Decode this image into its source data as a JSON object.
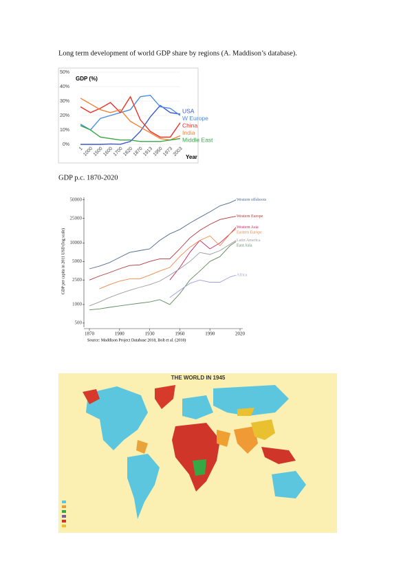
{
  "document": {
    "caption_1": "Long term development of world GDP share by regions (A. Maddison’s database).",
    "caption_2": "GDP p.c. 1870-2020"
  },
  "chart_data": [
    {
      "type": "line",
      "ylabel": "GDP (%)",
      "xlabel": "Year",
      "categories": [
        "1",
        "1000",
        "1500",
        "1600",
        "1700",
        "1820",
        "1870",
        "1913",
        "1950",
        "1973",
        "2003"
      ],
      "ylim": [
        0,
        50
      ],
      "yticks": [
        {
          "value": 0,
          "label": "0%"
        },
        {
          "value": 10,
          "label": "10%"
        },
        {
          "value": 20,
          "label": "20%"
        },
        {
          "value": 30,
          "label": "30%"
        },
        {
          "value": 40,
          "label": "40%"
        },
        {
          "value": 50,
          "label": "50%"
        }
      ],
      "series": [
        {
          "name": "USA",
          "color": "#3a55d0",
          "values": [
            0,
            0,
            0,
            0.3,
            0.1,
            2,
            9,
            19,
            27,
            22,
            21
          ]
        },
        {
          "name": "W Europe",
          "color": "#4a8ae8",
          "values": [
            14,
            10,
            18,
            20,
            22,
            24,
            33,
            34,
            26,
            25,
            20
          ]
        },
        {
          "name": "China",
          "color": "#e83028",
          "values": [
            26,
            22,
            25,
            29,
            22,
            33,
            17,
            9,
            5,
            5,
            15
          ]
        },
        {
          "name": "India",
          "color": "#f08232",
          "values": [
            32,
            28,
            24,
            22,
            24,
            16,
            12,
            8,
            4,
            3,
            6
          ]
        },
        {
          "name": "Middle East",
          "color": "#35a845",
          "values": [
            13,
            10,
            5,
            4,
            3,
            3,
            2,
            2,
            2,
            3,
            4
          ]
        }
      ]
    },
    {
      "type": "line",
      "log_scale_y": true,
      "ylabel": "GDP per capita in 2011 USD (log scale)",
      "note": "Source: Maddison Project Database 2018, Bolt et al. (2018)",
      "x": [
        1870,
        1880,
        1890,
        1900,
        1910,
        1920,
        1930,
        1940,
        1950,
        1960,
        1970,
        1980,
        1990,
        2000,
        2010,
        2016
      ],
      "xlim": [
        1870,
        2020
      ],
      "xticks": [
        1870,
        1900,
        1930,
        1960,
        1990,
        2020
      ],
      "ylim": [
        450,
        55000
      ],
      "yticks": [
        500,
        1000,
        2500,
        5000,
        10000,
        25000,
        50000
      ],
      "series": [
        {
          "name": "Western offshoots",
          "color": "#4d6a8c",
          "values": [
            3800,
            4200,
            4800,
            5800,
            7000,
            7500,
            8000,
            11000,
            14000,
            16500,
            21000,
            26000,
            32000,
            40000,
            45000,
            50000
          ]
        },
        {
          "name": "Western Europe",
          "color": "#b03434",
          "values": [
            2500,
            2900,
            3300,
            3800,
            4300,
            4400,
            5000,
            5500,
            5500,
            8000,
            12000,
            16000,
            20000,
            24000,
            26000,
            27000
          ]
        },
        {
          "name": "Western Asia",
          "color": "#cc2358",
          "values": [
            null,
            null,
            null,
            null,
            null,
            null,
            null,
            null,
            2500,
            4000,
            7000,
            11000,
            8000,
            10000,
            14000,
            18000
          ]
        },
        {
          "name": "Eastern Europe",
          "color": "#f08545",
          "values": [
            null,
            1800,
            2100,
            2400,
            2600,
            2600,
            3000,
            3500,
            4000,
            6000,
            8500,
            11000,
            13000,
            9000,
            14000,
            17000
          ]
        },
        {
          "name": "Latin America",
          "color": "#9a9a9a",
          "values": [
            950,
            1100,
            1300,
            1500,
            1700,
            1900,
            2100,
            2400,
            3000,
            3800,
            5000,
            7000,
            6500,
            7500,
            9500,
            11000
          ]
        },
        {
          "name": "East Asia",
          "color": "#5d8a5d",
          "values": [
            820,
            850,
            900,
            950,
            1000,
            1050,
            1100,
            1200,
            1000,
            1500,
            2500,
            3500,
            5000,
            6000,
            9000,
            10500
          ]
        },
        {
          "name": "Africa",
          "color": "#9d9de0",
          "values": [
            null,
            null,
            null,
            null,
            null,
            null,
            null,
            null,
            1300,
            1700,
            2200,
            2500,
            2300,
            2300,
            2800,
            3000
          ]
        }
      ]
    }
  ],
  "map": {
    "title": "THE WORLD IN 1945"
  }
}
